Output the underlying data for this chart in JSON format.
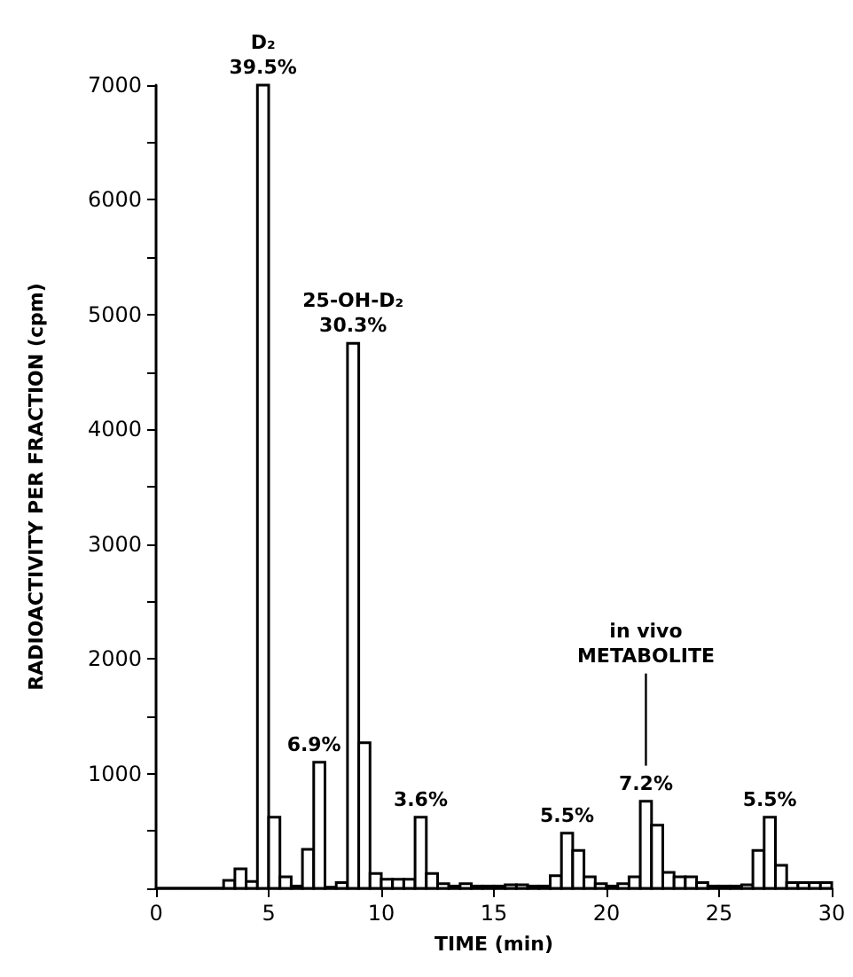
{
  "chart_data": {
    "type": "histogram",
    "xlabel": "TIME (min)",
    "ylabel": "RADIOACTIVITY PER FRACTION (cpm)",
    "color": "#ffffff",
    "bins": [
      0,
      0.5,
      1,
      1.5,
      2,
      2.5,
      3,
      3.5,
      4,
      4.5,
      5,
      5.5,
      6,
      6.5,
      7,
      7.5,
      8,
      8.5,
      9,
      9.5,
      10,
      10.5,
      11,
      11.5,
      12,
      12.5,
      13,
      13.5,
      14,
      14.5,
      15,
      15.5,
      16,
      16.5,
      17,
      17.5,
      18,
      18.5,
      19,
      19.5,
      20,
      20.5,
      21,
      21.5,
      22,
      22.5,
      23,
      23.5,
      24,
      24.5,
      25,
      25.5,
      26,
      26.5,
      27,
      27.5,
      28,
      28.5,
      29,
      29.5,
      30
    ],
    "values": [
      0,
      0,
      0,
      0,
      0,
      0,
      70,
      170,
      60,
      7000,
      620,
      100,
      20,
      340,
      1100,
      10,
      50,
      4750,
      1270,
      130,
      80,
      80,
      80,
      620,
      130,
      40,
      20,
      40,
      20,
      20,
      20,
      30,
      30,
      20,
      20,
      110,
      480,
      330,
      100,
      40,
      20,
      40,
      100,
      760,
      550,
      140,
      100,
      100,
      50,
      20,
      20,
      20,
      30,
      330,
      620,
      200,
      50,
      50,
      50,
      50
    ],
    "xlim": [
      0,
      30
    ],
    "xticks": [
      0,
      5,
      10,
      15,
      20,
      25,
      30
    ],
    "ylim": [
      0,
      7000
    ],
    "yticks": [
      {
        "value": 0,
        "label": null
      },
      {
        "value": 500,
        "label": null
      },
      1000,
      {
        "value": 1500,
        "label": null
      },
      2000,
      {
        "value": 2500,
        "label": null
      },
      3000,
      {
        "value": 3500,
        "label": null
      },
      4000,
      {
        "value": 4500,
        "label": null
      },
      5000,
      {
        "value": 5500,
        "label": null
      },
      6000,
      {
        "value": 6500,
        "label": null
      },
      7000
    ],
    "annotations": [
      {
        "text": "D₂\n39.5%",
        "x": 4.75,
        "y": 7000
      },
      {
        "text": "25-OH-D₂\n30.3%",
        "x": 8.75,
        "y": 4750
      },
      {
        "text": "6.9%",
        "x": 7.25,
        "y": 1100
      },
      {
        "text": "3.6%",
        "x": 11.75,
        "y": 620
      },
      {
        "text": "5.5%",
        "x": 18.25,
        "y": 480
      },
      {
        "text": "7.2%",
        "x": 21.75,
        "y": 760
      },
      "in vivo\nMETABOLITE",
      {
        "text": "5.5%",
        "x": 27.25,
        "y": 615
      }
    ]
  }
}
